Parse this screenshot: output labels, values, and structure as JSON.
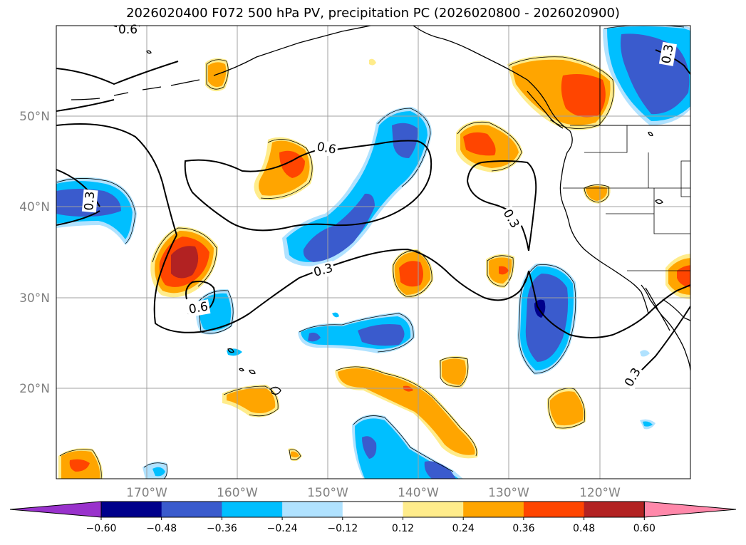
{
  "title": "2026020400 F072 500 hPa PV, precipitation PC (2026020800 - 2026020900)",
  "map": {
    "lat_labels": [
      "50°N",
      "40°N",
      "30°N",
      "20°N"
    ],
    "lon_labels": [
      "170°W",
      "160°W",
      "150°W",
      "140°W",
      "130°W",
      "120°W"
    ],
    "lat_values": [
      50,
      40,
      30,
      20
    ],
    "lon_values": [
      -170,
      -160,
      -150,
      -140,
      -130,
      -120
    ],
    "extent": {
      "lon_min": -180,
      "lon_max": -110,
      "lat_min": 10,
      "lat_max": 60
    },
    "grid": true
  },
  "contour_labels": [
    "0.6",
    "0.6",
    "0.3",
    "0.3",
    "0.3",
    "0.3",
    "0.3",
    "0.6"
  ],
  "colorbar": {
    "tick_labels": [
      "−0.60",
      "−0.48",
      "−0.36",
      "−0.24",
      "−0.12",
      "0.12",
      "0.24",
      "0.36",
      "0.48",
      "0.60"
    ],
    "boundaries": [
      -0.6,
      -0.48,
      -0.36,
      -0.24,
      -0.12,
      0.12,
      0.24,
      0.36,
      0.48,
      0.6
    ],
    "colors": [
      "#9932cc",
      "#00008b",
      "#3a5bcd",
      "#00bfff",
      "#b0e2ff",
      "#ffffff",
      "#ffec8b",
      "#ffa500",
      "#ff4500",
      "#b22222",
      "#ff88aa"
    ]
  }
}
